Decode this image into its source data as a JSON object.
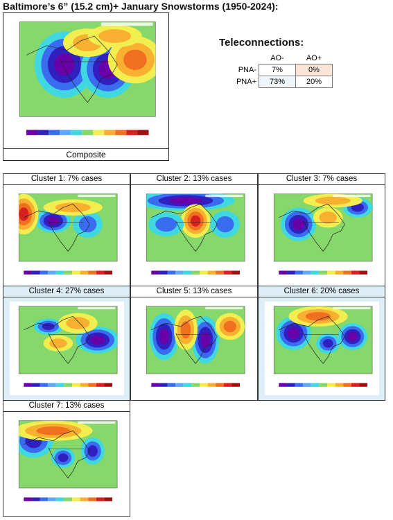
{
  "title": "Baltimore’s 6” (15.2 cm)+ January Snowstorms (1950-2024):",
  "composite": {
    "caption": "Composite"
  },
  "teleconnections": {
    "title": "Teleconnections:",
    "columns": [
      "AO-",
      "AO+"
    ],
    "rows": [
      {
        "label": "PNA-",
        "values": [
          "7%",
          "0%"
        ]
      },
      {
        "label": "PNA+",
        "values": [
          "73%",
          "20%"
        ]
      }
    ]
  },
  "clusters": [
    {
      "label": "Cluster 1: 7%  cases"
    },
    {
      "label": "Cluster 2: 13% cases"
    },
    {
      "label": "Cluster 3: 7% cases"
    },
    {
      "label": "Cluster 4: 27% cases"
    },
    {
      "label": "Cluster 5: 13% cases"
    },
    {
      "label": "Cluster 6: 20% cases"
    },
    {
      "label": "Cluster 7: 13% cases"
    }
  ]
}
